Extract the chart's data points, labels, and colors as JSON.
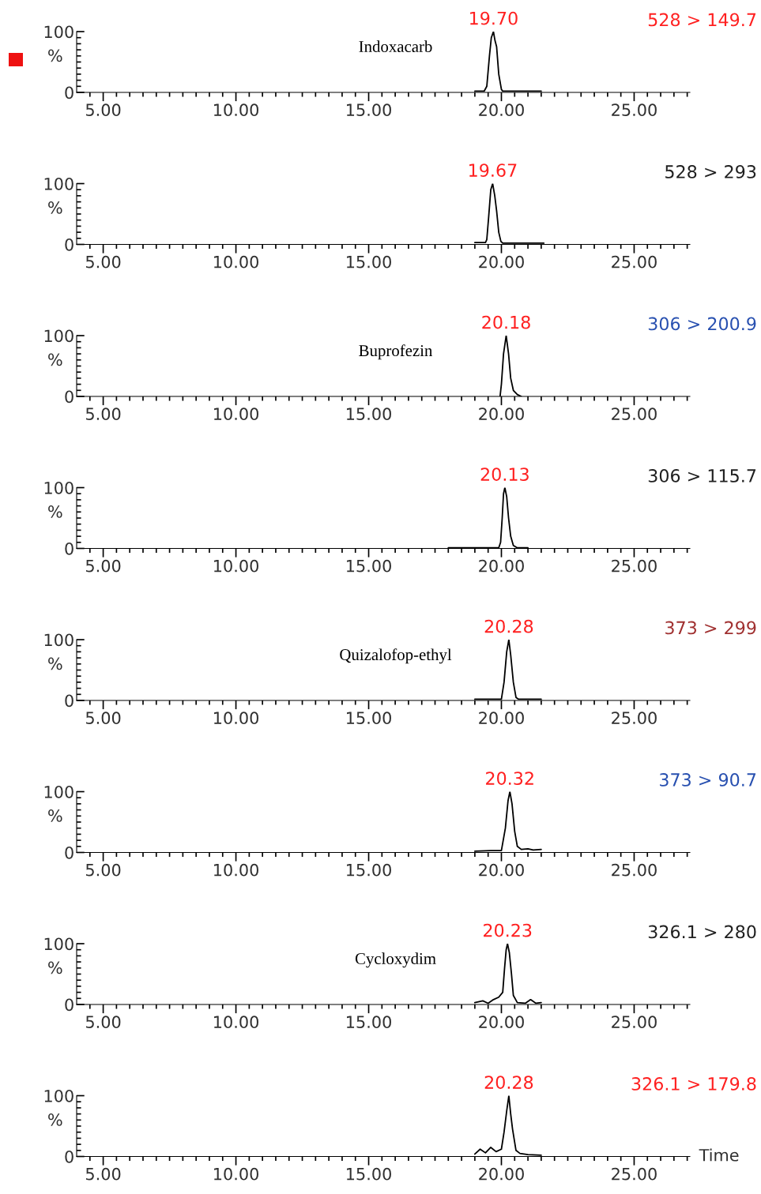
{
  "chart_data": [
    {
      "type": "line",
      "title": "528 > 149.7",
      "ylabel": "%",
      "annotations": [
        {
          "text": "19.70",
          "x": 19.7,
          "y": 100
        },
        "Indoxacarb"
      ],
      "xlim": [
        4,
        27.1
      ],
      "ylim": [
        0,
        100
      ],
      "xticks": [
        {
          "value": 4.5,
          "label": null
        },
        {
          "value": 5,
          "label": "5.00"
        },
        {
          "value": 5.5,
          "label": null
        },
        {
          "value": 6,
          "label": null
        },
        {
          "value": 6.5,
          "label": null
        },
        {
          "value": 7,
          "label": null
        },
        {
          "value": 7.5,
          "label": null
        },
        {
          "value": 8,
          "label": null
        },
        {
          "value": 8.5,
          "label": null
        },
        {
          "value": 9,
          "label": null
        },
        {
          "value": 9.5,
          "label": null
        },
        {
          "value": 10,
          "label": "10.00"
        },
        {
          "value": 10.5,
          "label": null
        },
        {
          "value": 11,
          "label": null
        },
        {
          "value": 11.5,
          "label": null
        },
        {
          "value": 12,
          "label": null
        },
        {
          "value": 12.5,
          "label": null
        },
        {
          "value": 13,
          "label": null
        },
        {
          "value": 13.5,
          "label": null
        },
        {
          "value": 14,
          "label": null
        },
        {
          "value": 14.5,
          "label": null
        },
        {
          "value": 15,
          "label": "15.00"
        },
        {
          "value": 15.5,
          "label": null
        },
        {
          "value": 16,
          "label": null
        },
        {
          "value": 16.5,
          "label": null
        },
        {
          "value": 17,
          "label": null
        },
        {
          "value": 17.5,
          "label": null
        },
        {
          "value": 18,
          "label": null
        },
        {
          "value": 18.5,
          "label": null
        },
        {
          "value": 19,
          "label": null
        },
        {
          "value": 19.5,
          "label": null
        },
        {
          "value": 20,
          "label": "20.00"
        },
        {
          "value": 20.5,
          "label": null
        },
        {
          "value": 21,
          "label": null
        },
        {
          "value": 21.5,
          "label": null
        },
        {
          "value": 22,
          "label": null
        },
        {
          "value": 22.5,
          "label": null
        },
        {
          "value": 23,
          "label": null
        },
        {
          "value": 23.5,
          "label": null
        },
        {
          "value": 24,
          "label": null
        },
        {
          "value": 24.5,
          "label": null
        },
        {
          "value": 25,
          "label": "25.00"
        },
        {
          "value": 25.5,
          "label": null
        },
        {
          "value": 26,
          "label": null
        },
        {
          "value": 26.5,
          "label": null
        },
        {
          "value": 27,
          "label": null
        }
      ],
      "yticks": [
        0,
        {
          "value": 10,
          "label": null
        },
        {
          "value": 20,
          "label": null
        },
        {
          "value": 30,
          "label": null
        },
        {
          "value": 40,
          "label": null
        },
        {
          "value": 50,
          "label": null
        },
        {
          "value": 60,
          "label": null
        },
        {
          "value": 70,
          "label": null
        },
        {
          "value": 80,
          "label": null
        },
        {
          "value": 90,
          "label": null
        },
        100
      ],
      "x": [
        19.0,
        19.35,
        19.45,
        19.55,
        19.62,
        19.7,
        19.76,
        19.82,
        19.9,
        20.0,
        20.05,
        21.5
      ],
      "series": [
        {
          "color": "#000000",
          "values": [
            2,
            2,
            10,
            60,
            90,
            100,
            85,
            75,
            30,
            5,
            2,
            2
          ]
        }
      ]
    },
    {
      "type": "line",
      "title": "528 > 293",
      "ylabel": "%",
      "annotations": [
        {
          "text": "19.67",
          "x": 19.67,
          "y": 100
        }
      ],
      "xlim": [
        4,
        27.1
      ],
      "ylim": [
        0,
        100
      ],
      "xticks": [
        {
          "value": 4.5,
          "label": null
        },
        {
          "value": 5,
          "label": "5.00"
        },
        {
          "value": 5.5,
          "label": null
        },
        {
          "value": 6,
          "label": null
        },
        {
          "value": 6.5,
          "label": null
        },
        {
          "value": 7,
          "label": null
        },
        {
          "value": 7.5,
          "label": null
        },
        {
          "value": 8,
          "label": null
        },
        {
          "value": 8.5,
          "label": null
        },
        {
          "value": 9,
          "label": null
        },
        {
          "value": 9.5,
          "label": null
        },
        {
          "value": 10,
          "label": "10.00"
        },
        {
          "value": 10.5,
          "label": null
        },
        {
          "value": 11,
          "label": null
        },
        {
          "value": 11.5,
          "label": null
        },
        {
          "value": 12,
          "label": null
        },
        {
          "value": 12.5,
          "label": null
        },
        {
          "value": 13,
          "label": null
        },
        {
          "value": 13.5,
          "label": null
        },
        {
          "value": 14,
          "label": null
        },
        {
          "value": 14.5,
          "label": null
        },
        {
          "value": 15,
          "label": "15.00"
        },
        {
          "value": 15.5,
          "label": null
        },
        {
          "value": 16,
          "label": null
        },
        {
          "value": 16.5,
          "label": null
        },
        {
          "value": 17,
          "label": null
        },
        {
          "value": 17.5,
          "label": null
        },
        {
          "value": 18,
          "label": null
        },
        {
          "value": 18.5,
          "label": null
        },
        {
          "value": 19,
          "label": null
        },
        {
          "value": 19.5,
          "label": null
        },
        {
          "value": 20,
          "label": "20.00"
        },
        {
          "value": 20.5,
          "label": null
        },
        {
          "value": 21,
          "label": null
        },
        {
          "value": 21.5,
          "label": null
        },
        {
          "value": 22,
          "label": null
        },
        {
          "value": 22.5,
          "label": null
        },
        {
          "value": 23,
          "label": null
        },
        {
          "value": 23.5,
          "label": null
        },
        {
          "value": 24,
          "label": null
        },
        {
          "value": 24.5,
          "label": null
        },
        {
          "value": 25,
          "label": "25.00"
        },
        {
          "value": 25.5,
          "label": null
        },
        {
          "value": 26,
          "label": null
        },
        {
          "value": 26.5,
          "label": null
        },
        {
          "value": 27,
          "label": null
        }
      ],
      "yticks": [
        0,
        {
          "value": 10,
          "label": null
        },
        {
          "value": 20,
          "label": null
        },
        {
          "value": 30,
          "label": null
        },
        {
          "value": 40,
          "label": null
        },
        {
          "value": 50,
          "label": null
        },
        {
          "value": 60,
          "label": null
        },
        {
          "value": 70,
          "label": null
        },
        {
          "value": 80,
          "label": null
        },
        {
          "value": 90,
          "label": null
        },
        100
      ],
      "x": [
        19.0,
        19.4,
        19.45,
        19.52,
        19.6,
        19.67,
        19.75,
        19.82,
        19.9,
        19.98,
        20.05,
        21.6
      ],
      "series": [
        {
          "color": "#000000",
          "values": [
            3,
            3,
            8,
            45,
            90,
            100,
            80,
            55,
            20,
            5,
            2,
            2
          ]
        }
      ]
    },
    {
      "type": "line",
      "title": "306 > 200.9",
      "ylabel": "%",
      "annotations": [
        {
          "text": "20.18",
          "x": 20.18,
          "y": 100
        },
        "Buprofezin"
      ],
      "xlim": [
        4,
        27.1
      ],
      "ylim": [
        0,
        100
      ],
      "xticks": [
        {
          "value": 4.5,
          "label": null
        },
        {
          "value": 5,
          "label": "5.00"
        },
        {
          "value": 5.5,
          "label": null
        },
        {
          "value": 6,
          "label": null
        },
        {
          "value": 6.5,
          "label": null
        },
        {
          "value": 7,
          "label": null
        },
        {
          "value": 7.5,
          "label": null
        },
        {
          "value": 8,
          "label": null
        },
        {
          "value": 8.5,
          "label": null
        },
        {
          "value": 9,
          "label": null
        },
        {
          "value": 9.5,
          "label": null
        },
        {
          "value": 10,
          "label": "10.00"
        },
        {
          "value": 10.5,
          "label": null
        },
        {
          "value": 11,
          "label": null
        },
        {
          "value": 11.5,
          "label": null
        },
        {
          "value": 12,
          "label": null
        },
        {
          "value": 12.5,
          "label": null
        },
        {
          "value": 13,
          "label": null
        },
        {
          "value": 13.5,
          "label": null
        },
        {
          "value": 14,
          "label": null
        },
        {
          "value": 14.5,
          "label": null
        },
        {
          "value": 15,
          "label": "15.00"
        },
        {
          "value": 15.5,
          "label": null
        },
        {
          "value": 16,
          "label": null
        },
        {
          "value": 16.5,
          "label": null
        },
        {
          "value": 17,
          "label": null
        },
        {
          "value": 17.5,
          "label": null
        },
        {
          "value": 18,
          "label": null
        },
        {
          "value": 18.5,
          "label": null
        },
        {
          "value": 19,
          "label": null
        },
        {
          "value": 19.5,
          "label": null
        },
        {
          "value": 20,
          "label": "20.00"
        },
        {
          "value": 20.5,
          "label": null
        },
        {
          "value": 21,
          "label": null
        },
        {
          "value": 21.5,
          "label": null
        },
        {
          "value": 22,
          "label": null
        },
        {
          "value": 22.5,
          "label": null
        },
        {
          "value": 23,
          "label": null
        },
        {
          "value": 23.5,
          "label": null
        },
        {
          "value": 24,
          "label": null
        },
        {
          "value": 24.5,
          "label": null
        },
        {
          "value": 25,
          "label": "25.00"
        },
        {
          "value": 25.5,
          "label": null
        },
        {
          "value": 26,
          "label": null
        },
        {
          "value": 26.5,
          "label": null
        },
        {
          "value": 27,
          "label": null
        }
      ],
      "yticks": [
        0,
        {
          "value": 10,
          "label": null
        },
        {
          "value": 20,
          "label": null
        },
        {
          "value": 30,
          "label": null
        },
        {
          "value": 40,
          "label": null
        },
        {
          "value": 50,
          "label": null
        },
        {
          "value": 60,
          "label": null
        },
        {
          "value": 70,
          "label": null
        },
        {
          "value": 80,
          "label": null
        },
        {
          "value": 90,
          "label": null
        },
        100
      ],
      "x": [
        19.95,
        20.0,
        20.08,
        20.18,
        20.27,
        20.35,
        20.45,
        20.6,
        20.75
      ],
      "series": [
        {
          "color": "#000000",
          "values": [
            0,
            20,
            70,
            100,
            70,
            30,
            10,
            3,
            0
          ]
        }
      ]
    },
    {
      "type": "line",
      "title": "306 > 115.7",
      "ylabel": "%",
      "annotations": [
        {
          "text": "20.13",
          "x": 20.13,
          "y": 100
        }
      ],
      "xlim": [
        4,
        27.1
      ],
      "ylim": [
        0,
        100
      ],
      "xticks": [
        {
          "value": 4.5,
          "label": null
        },
        {
          "value": 5,
          "label": "5.00"
        },
        {
          "value": 5.5,
          "label": null
        },
        {
          "value": 6,
          "label": null
        },
        {
          "value": 6.5,
          "label": null
        },
        {
          "value": 7,
          "label": null
        },
        {
          "value": 7.5,
          "label": null
        },
        {
          "value": 8,
          "label": null
        },
        {
          "value": 8.5,
          "label": null
        },
        {
          "value": 9,
          "label": null
        },
        {
          "value": 9.5,
          "label": null
        },
        {
          "value": 10,
          "label": "10.00"
        },
        {
          "value": 10.5,
          "label": null
        },
        {
          "value": 11,
          "label": null
        },
        {
          "value": 11.5,
          "label": null
        },
        {
          "value": 12,
          "label": null
        },
        {
          "value": 12.5,
          "label": null
        },
        {
          "value": 13,
          "label": null
        },
        {
          "value": 13.5,
          "label": null
        },
        {
          "value": 14,
          "label": null
        },
        {
          "value": 14.5,
          "label": null
        },
        {
          "value": 15,
          "label": "15.00"
        },
        {
          "value": 15.5,
          "label": null
        },
        {
          "value": 16,
          "label": null
        },
        {
          "value": 16.5,
          "label": null
        },
        {
          "value": 17,
          "label": null
        },
        {
          "value": 17.5,
          "label": null
        },
        {
          "value": 18,
          "label": null
        },
        {
          "value": 18.5,
          "label": null
        },
        {
          "value": 19,
          "label": null
        },
        {
          "value": 19.5,
          "label": null
        },
        {
          "value": 20,
          "label": "20.00"
        },
        {
          "value": 20.5,
          "label": null
        },
        {
          "value": 21,
          "label": null
        },
        {
          "value": 21.5,
          "label": null
        },
        {
          "value": 22,
          "label": null
        },
        {
          "value": 22.5,
          "label": null
        },
        {
          "value": 23,
          "label": null
        },
        {
          "value": 23.5,
          "label": null
        },
        {
          "value": 24,
          "label": null
        },
        {
          "value": 24.5,
          "label": null
        },
        {
          "value": 25,
          "label": "25.00"
        },
        {
          "value": 25.5,
          "label": null
        },
        {
          "value": 26,
          "label": null
        },
        {
          "value": 26.5,
          "label": null
        },
        {
          "value": 27,
          "label": null
        }
      ],
      "yticks": [
        0,
        {
          "value": 10,
          "label": null
        },
        {
          "value": 20,
          "label": null
        },
        {
          "value": 30,
          "label": null
        },
        {
          "value": 40,
          "label": null
        },
        {
          "value": 50,
          "label": null
        },
        {
          "value": 60,
          "label": null
        },
        {
          "value": 70,
          "label": null
        },
        {
          "value": 80,
          "label": null
        },
        {
          "value": 90,
          "label": null
        },
        100
      ],
      "x": [
        18.0,
        19.9,
        19.97,
        20.03,
        20.08,
        20.13,
        20.2,
        20.27,
        20.35,
        20.45,
        20.6,
        21.0
      ],
      "series": [
        {
          "color": "#000000",
          "values": [
            1,
            1,
            10,
            50,
            90,
            100,
            85,
            50,
            20,
            5,
            1,
            1
          ]
        }
      ]
    },
    {
      "type": "line",
      "title": "373 > 299",
      "ylabel": "%",
      "annotations": [
        {
          "text": "20.28",
          "x": 20.28,
          "y": 100
        },
        "Quizalofop-ethyl"
      ],
      "xlim": [
        4,
        27.1
      ],
      "ylim": [
        0,
        100
      ],
      "xticks": [
        {
          "value": 4.5,
          "label": null
        },
        {
          "value": 5,
          "label": "5.00"
        },
        {
          "value": 5.5,
          "label": null
        },
        {
          "value": 6,
          "label": null
        },
        {
          "value": 6.5,
          "label": null
        },
        {
          "value": 7,
          "label": null
        },
        {
          "value": 7.5,
          "label": null
        },
        {
          "value": 8,
          "label": null
        },
        {
          "value": 8.5,
          "label": null
        },
        {
          "value": 9,
          "label": null
        },
        {
          "value": 9.5,
          "label": null
        },
        {
          "value": 10,
          "label": "10.00"
        },
        {
          "value": 10.5,
          "label": null
        },
        {
          "value": 11,
          "label": null
        },
        {
          "value": 11.5,
          "label": null
        },
        {
          "value": 12,
          "label": null
        },
        {
          "value": 12.5,
          "label": null
        },
        {
          "value": 13,
          "label": null
        },
        {
          "value": 13.5,
          "label": null
        },
        {
          "value": 14,
          "label": null
        },
        {
          "value": 14.5,
          "label": null
        },
        {
          "value": 15,
          "label": "15.00"
        },
        {
          "value": 15.5,
          "label": null
        },
        {
          "value": 16,
          "label": null
        },
        {
          "value": 16.5,
          "label": null
        },
        {
          "value": 17,
          "label": null
        },
        {
          "value": 17.5,
          "label": null
        },
        {
          "value": 18,
          "label": null
        },
        {
          "value": 18.5,
          "label": null
        },
        {
          "value": 19,
          "label": null
        },
        {
          "value": 19.5,
          "label": null
        },
        {
          "value": 20,
          "label": "20.00"
        },
        {
          "value": 20.5,
          "label": null
        },
        {
          "value": 21,
          "label": null
        },
        {
          "value": 21.5,
          "label": null
        },
        {
          "value": 22,
          "label": null
        },
        {
          "value": 22.5,
          "label": null
        },
        {
          "value": 23,
          "label": null
        },
        {
          "value": 23.5,
          "label": null
        },
        {
          "value": 24,
          "label": null
        },
        {
          "value": 24.5,
          "label": null
        },
        {
          "value": 25,
          "label": "25.00"
        },
        {
          "value": 25.5,
          "label": null
        },
        {
          "value": 26,
          "label": null
        },
        {
          "value": 26.5,
          "label": null
        },
        {
          "value": 27,
          "label": null
        }
      ],
      "yticks": [
        0,
        {
          "value": 10,
          "label": null
        },
        {
          "value": 20,
          "label": null
        },
        {
          "value": 30,
          "label": null
        },
        {
          "value": 40,
          "label": null
        },
        {
          "value": 50,
          "label": null
        },
        {
          "value": 60,
          "label": null
        },
        {
          "value": 70,
          "label": null
        },
        {
          "value": 80,
          "label": null
        },
        {
          "value": 90,
          "label": null
        },
        100
      ],
      "x": [
        19.0,
        20.0,
        20.1,
        20.2,
        20.28,
        20.35,
        20.45,
        20.55,
        20.65,
        21.5
      ],
      "series": [
        {
          "color": "#000000",
          "values": [
            2,
            2,
            30,
            80,
            100,
            75,
            30,
            5,
            2,
            2
          ]
        }
      ]
    },
    {
      "type": "line",
      "title": "373 > 90.7",
      "ylabel": "%",
      "annotations": [
        {
          "text": "20.32",
          "x": 20.32,
          "y": 100
        }
      ],
      "xlim": [
        4,
        27.1
      ],
      "ylim": [
        0,
        100
      ],
      "xticks": [
        {
          "value": 4.5,
          "label": null
        },
        {
          "value": 5,
          "label": "5.00"
        },
        {
          "value": 5.5,
          "label": null
        },
        {
          "value": 6,
          "label": null
        },
        {
          "value": 6.5,
          "label": null
        },
        {
          "value": 7,
          "label": null
        },
        {
          "value": 7.5,
          "label": null
        },
        {
          "value": 8,
          "label": null
        },
        {
          "value": 8.5,
          "label": null
        },
        {
          "value": 9,
          "label": null
        },
        {
          "value": 9.5,
          "label": null
        },
        {
          "value": 10,
          "label": "10.00"
        },
        {
          "value": 10.5,
          "label": null
        },
        {
          "value": 11,
          "label": null
        },
        {
          "value": 11.5,
          "label": null
        },
        {
          "value": 12,
          "label": null
        },
        {
          "value": 12.5,
          "label": null
        },
        {
          "value": 13,
          "label": null
        },
        {
          "value": 13.5,
          "label": null
        },
        {
          "value": 14,
          "label": null
        },
        {
          "value": 14.5,
          "label": null
        },
        {
          "value": 15,
          "label": "15.00"
        },
        {
          "value": 15.5,
          "label": null
        },
        {
          "value": 16,
          "label": null
        },
        {
          "value": 16.5,
          "label": null
        },
        {
          "value": 17,
          "label": null
        },
        {
          "value": 17.5,
          "label": null
        },
        {
          "value": 18,
          "label": null
        },
        {
          "value": 18.5,
          "label": null
        },
        {
          "value": 19,
          "label": null
        },
        {
          "value": 19.5,
          "label": null
        },
        {
          "value": 20,
          "label": "20.00"
        },
        {
          "value": 20.5,
          "label": null
        },
        {
          "value": 21,
          "label": null
        },
        {
          "value": 21.5,
          "label": null
        },
        {
          "value": 22,
          "label": null
        },
        {
          "value": 22.5,
          "label": null
        },
        {
          "value": 23,
          "label": null
        },
        {
          "value": 23.5,
          "label": null
        },
        {
          "value": 24,
          "label": null
        },
        {
          "value": 24.5,
          "label": null
        },
        {
          "value": 25,
          "label": "25.00"
        },
        {
          "value": 25.5,
          "label": null
        },
        {
          "value": 26,
          "label": null
        },
        {
          "value": 26.5,
          "label": null
        },
        {
          "value": 27,
          "label": null
        }
      ],
      "yticks": [
        0,
        {
          "value": 10,
          "label": null
        },
        {
          "value": 20,
          "label": null
        },
        {
          "value": 30,
          "label": null
        },
        {
          "value": 40,
          "label": null
        },
        {
          "value": 50,
          "label": null
        },
        {
          "value": 60,
          "label": null
        },
        {
          "value": 70,
          "label": null
        },
        {
          "value": 80,
          "label": null
        },
        {
          "value": 90,
          "label": null
        },
        100
      ],
      "x": [
        19.0,
        19.6,
        20.0,
        20.15,
        20.25,
        20.32,
        20.4,
        20.5,
        20.6,
        20.75,
        21.0,
        21.2,
        21.5
      ],
      "series": [
        {
          "color": "#000000",
          "values": [
            2,
            3,
            3,
            40,
            85,
            100,
            80,
            35,
            10,
            5,
            6,
            4,
            5
          ]
        }
      ]
    },
    {
      "type": "line",
      "title": "326.1 > 280",
      "ylabel": "%",
      "annotations": [
        {
          "text": "20.23",
          "x": 20.23,
          "y": 100
        },
        "Cycloxydim"
      ],
      "xlim": [
        4,
        27.1
      ],
      "ylim": [
        0,
        100
      ],
      "xticks": [
        {
          "value": 4.5,
          "label": null
        },
        {
          "value": 5,
          "label": "5.00"
        },
        {
          "value": 5.5,
          "label": null
        },
        {
          "value": 6,
          "label": null
        },
        {
          "value": 6.5,
          "label": null
        },
        {
          "value": 7,
          "label": null
        },
        {
          "value": 7.5,
          "label": null
        },
        {
          "value": 8,
          "label": null
        },
        {
          "value": 8.5,
          "label": null
        },
        {
          "value": 9,
          "label": null
        },
        {
          "value": 9.5,
          "label": null
        },
        {
          "value": 10,
          "label": "10.00"
        },
        {
          "value": 10.5,
          "label": null
        },
        {
          "value": 11,
          "label": null
        },
        {
          "value": 11.5,
          "label": null
        },
        {
          "value": 12,
          "label": null
        },
        {
          "value": 12.5,
          "label": null
        },
        {
          "value": 13,
          "label": null
        },
        {
          "value": 13.5,
          "label": null
        },
        {
          "value": 14,
          "label": null
        },
        {
          "value": 14.5,
          "label": null
        },
        {
          "value": 15,
          "label": "15.00"
        },
        {
          "value": 15.5,
          "label": null
        },
        {
          "value": 16,
          "label": null
        },
        {
          "value": 16.5,
          "label": null
        },
        {
          "value": 17,
          "label": null
        },
        {
          "value": 17.5,
          "label": null
        },
        {
          "value": 18,
          "label": null
        },
        {
          "value": 18.5,
          "label": null
        },
        {
          "value": 19,
          "label": null
        },
        {
          "value": 19.5,
          "label": null
        },
        {
          "value": 20,
          "label": "20.00"
        },
        {
          "value": 20.5,
          "label": null
        },
        {
          "value": 21,
          "label": null
        },
        {
          "value": 21.5,
          "label": null
        },
        {
          "value": 22,
          "label": null
        },
        {
          "value": 22.5,
          "label": null
        },
        {
          "value": 23,
          "label": null
        },
        {
          "value": 23.5,
          "label": null
        },
        {
          "value": 24,
          "label": null
        },
        {
          "value": 24.5,
          "label": null
        },
        {
          "value": 25,
          "label": "25.00"
        },
        {
          "value": 25.5,
          "label": null
        },
        {
          "value": 26,
          "label": null
        },
        {
          "value": 26.5,
          "label": null
        },
        {
          "value": 27,
          "label": null
        }
      ],
      "yticks": [
        0,
        {
          "value": 10,
          "label": null
        },
        {
          "value": 20,
          "label": null
        },
        {
          "value": 30,
          "label": null
        },
        {
          "value": 40,
          "label": null
        },
        {
          "value": 50,
          "label": null
        },
        {
          "value": 60,
          "label": null
        },
        {
          "value": 70,
          "label": null
        },
        {
          "value": 80,
          "label": null
        },
        {
          "value": 90,
          "label": null
        },
        100
      ],
      "x": [
        19.0,
        19.3,
        19.5,
        19.7,
        19.9,
        20.05,
        20.12,
        20.18,
        20.23,
        20.3,
        20.38,
        20.45,
        20.6,
        20.9,
        21.1,
        21.3,
        21.5
      ],
      "series": [
        {
          "color": "#000000",
          "values": [
            3,
            6,
            2,
            8,
            12,
            20,
            60,
            90,
            100,
            85,
            50,
            15,
            3,
            2,
            8,
            2,
            3
          ]
        }
      ]
    },
    {
      "type": "line",
      "title": "326.1 > 179.8",
      "ylabel": "%",
      "xlabel": "Time",
      "annotations": [
        {
          "text": "20.28",
          "x": 20.28,
          "y": 100
        }
      ],
      "xlim": [
        4,
        27.1
      ],
      "ylim": [
        0,
        100
      ],
      "xticks": [
        {
          "value": 4.5,
          "label": null
        },
        {
          "value": 5,
          "label": "5.00"
        },
        {
          "value": 5.5,
          "label": null
        },
        {
          "value": 6,
          "label": null
        },
        {
          "value": 6.5,
          "label": null
        },
        {
          "value": 7,
          "label": null
        },
        {
          "value": 7.5,
          "label": null
        },
        {
          "value": 8,
          "label": null
        },
        {
          "value": 8.5,
          "label": null
        },
        {
          "value": 9,
          "label": null
        },
        {
          "value": 9.5,
          "label": null
        },
        {
          "value": 10,
          "label": "10.00"
        },
        {
          "value": 10.5,
          "label": null
        },
        {
          "value": 11,
          "label": null
        },
        {
          "value": 11.5,
          "label": null
        },
        {
          "value": 12,
          "label": null
        },
        {
          "value": 12.5,
          "label": null
        },
        {
          "value": 13,
          "label": null
        },
        {
          "value": 13.5,
          "label": null
        },
        {
          "value": 14,
          "label": null
        },
        {
          "value": 14.5,
          "label": null
        },
        {
          "value": 15,
          "label": "15.00"
        },
        {
          "value": 15.5,
          "label": null
        },
        {
          "value": 16,
          "label": null
        },
        {
          "value": 16.5,
          "label": null
        },
        {
          "value": 17,
          "label": null
        },
        {
          "value": 17.5,
          "label": null
        },
        {
          "value": 18,
          "label": null
        },
        {
          "value": 18.5,
          "label": null
        },
        {
          "value": 19,
          "label": null
        },
        {
          "value": 19.5,
          "label": null
        },
        {
          "value": 20,
          "label": "20.00"
        },
        {
          "value": 20.5,
          "label": null
        },
        {
          "value": 21,
          "label": null
        },
        {
          "value": 21.5,
          "label": null
        },
        {
          "value": 22,
          "label": null
        },
        {
          "value": 22.5,
          "label": null
        },
        {
          "value": 23,
          "label": null
        },
        {
          "value": 23.5,
          "label": null
        },
        {
          "value": 24,
          "label": null
        },
        {
          "value": 24.5,
          "label": null
        },
        {
          "value": 25,
          "label": "25.00"
        },
        {
          "value": 25.5,
          "label": null
        },
        {
          "value": 26,
          "label": null
        },
        {
          "value": 26.5,
          "label": null
        },
        {
          "value": 27,
          "label": null
        }
      ],
      "yticks": [
        0,
        {
          "value": 10,
          "label": null
        },
        {
          "value": 20,
          "label": null
        },
        {
          "value": 30,
          "label": null
        },
        {
          "value": 40,
          "label": null
        },
        {
          "value": 50,
          "label": null
        },
        {
          "value": 60,
          "label": null
        },
        {
          "value": 70,
          "label": null
        },
        {
          "value": 80,
          "label": null
        },
        {
          "value": 90,
          "label": null
        },
        100
      ],
      "x": [
        19.0,
        19.2,
        19.4,
        19.6,
        19.8,
        20.0,
        20.1,
        20.2,
        20.28,
        20.35,
        20.42,
        20.55,
        20.7,
        21.0,
        21.5
      ],
      "series": [
        {
          "color": "#000000",
          "values": [
            4,
            12,
            6,
            15,
            8,
            12,
            40,
            75,
            100,
            70,
            45,
            10,
            5,
            3,
            2
          ]
        }
      ]
    }
  ]
}
